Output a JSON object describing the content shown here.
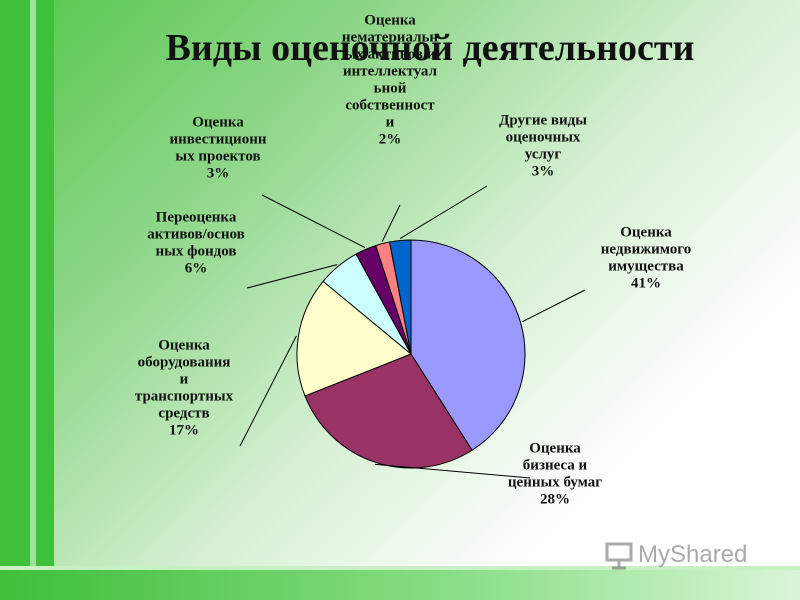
{
  "slide": {
    "title": "Виды оценочной деятельности",
    "watermark": "MyShared"
  },
  "chart_data": {
    "type": "pie",
    "title": "Виды оценочной деятельности",
    "start_angle_deg": 0,
    "direction": "clockwise",
    "slices": [
      {
        "lines": [
          "Оценка",
          "недвижимого",
          "имущества",
          "41%"
        ],
        "value": 41,
        "color": "#9999ff"
      },
      {
        "lines": [
          "Оценка",
          "бизнеса и",
          "ценных бумаг",
          "28%"
        ],
        "value": 28,
        "color": "#993366"
      },
      {
        "lines": [
          "Оценка",
          "оборудования",
          "и",
          "транспортных",
          "средств",
          "17%"
        ],
        "value": 17,
        "color": "#ffffcc"
      },
      {
        "lines": [
          "Переоценка",
          "активов/основ",
          "ных фондов",
          "6%"
        ],
        "value": 6,
        "color": "#ccffff"
      },
      {
        "lines": [
          "Оценка",
          "инвестиционн",
          "ых проектов",
          "3%"
        ],
        "value": 3,
        "color": "#660066"
      },
      {
        "lines": [
          "Оценка",
          "нематериальн",
          "ых активов и",
          "интеллектуал",
          "ьной",
          "собственност",
          "и",
          "2%"
        ],
        "value": 2,
        "color": "#ff8080"
      },
      {
        "lines": [
          "Другие виды",
          "оценочных",
          "услуг",
          "3%"
        ],
        "value": 3,
        "color": "#0066cc"
      }
    ],
    "legend": "none"
  }
}
